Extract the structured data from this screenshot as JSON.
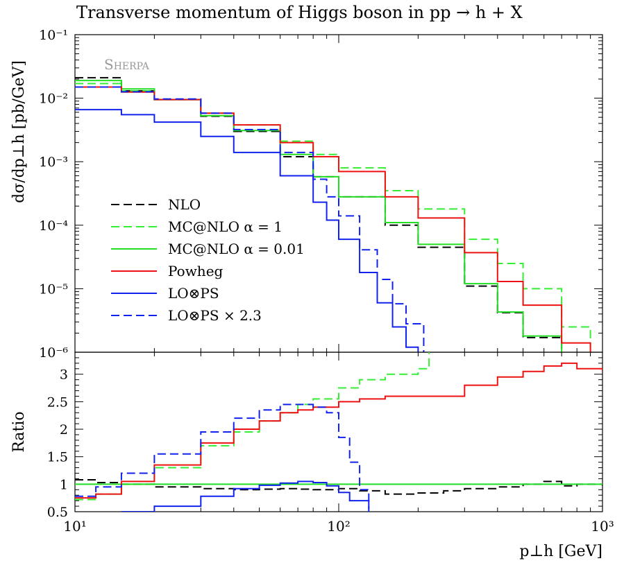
{
  "title": "Transverse momentum of Higgs boson in pp → h + X",
  "watermark": "Sherpa",
  "chart_data": [
    {
      "type": "line",
      "panel": "main",
      "xlabel": "p⊥h [GeV]",
      "ylabel": "dσ/dp⊥h [pb/GeV]",
      "xscale": "log",
      "yscale": "log",
      "xlim": [
        10,
        1000
      ],
      "ylim": [
        1e-06,
        0.1
      ],
      "y_tick_labels": [
        "10⁻¹",
        "10⁻²",
        "10⁻³",
        "10⁻⁴",
        "10⁻⁵",
        "10⁻⁶"
      ],
      "y_tick_values": [
        0.1,
        0.01,
        0.001,
        0.0001,
        1e-05,
        1e-06
      ],
      "legend_position": "lower-left",
      "series": [
        {
          "name": "NLO",
          "color": "#000000",
          "dash": "dashed",
          "x": [
            10,
            15,
            20,
            30,
            40,
            60,
            80,
            100,
            150,
            200,
            300,
            400,
            500,
            700,
            900
          ],
          "y": [
            0.021,
            0.013,
            0.0095,
            0.0052,
            0.003,
            0.0012,
            0.00058,
            0.00028,
            0.0001,
            4.5e-05,
            1.1e-05,
            4.2e-06,
            1.7e-06,
            9e-07,
            6e-07
          ]
        },
        {
          "name": "MC@NLO α = 1",
          "color": "#33ee33",
          "dash": "dashed",
          "x": [
            10,
            15,
            20,
            30,
            40,
            60,
            80,
            100,
            150,
            200,
            300,
            400,
            500,
            700,
            900
          ],
          "y": [
            0.017,
            0.013,
            0.0095,
            0.0058,
            0.0038,
            0.0021,
            0.0013,
            0.0008,
            0.00035,
            0.00018,
            6e-05,
            2.5e-05,
            1e-05,
            2.5e-06,
            1.2e-06
          ]
        },
        {
          "name": "MC@NLO α = 0.01",
          "color": "#22dd22",
          "dash": "solid",
          "x": [
            10,
            15,
            20,
            30,
            40,
            60,
            80,
            100,
            150,
            200,
            300,
            400,
            500,
            700,
            900
          ],
          "y": [
            0.019,
            0.014,
            0.0095,
            0.0053,
            0.0031,
            0.0013,
            0.00058,
            0.00028,
            0.00011,
            5e-05,
            1.2e-05,
            4.3e-06,
            1.8e-06,
            9e-07,
            6e-07
          ]
        },
        {
          "name": "Powheg",
          "color": "#ee1111",
          "dash": "solid",
          "x": [
            10,
            15,
            20,
            30,
            40,
            60,
            80,
            100,
            150,
            200,
            300,
            400,
            500,
            700,
            900
          ],
          "y": [
            0.015,
            0.0125,
            0.0095,
            0.0058,
            0.0038,
            0.002,
            0.0012,
            0.0007,
            0.00028,
            0.00013,
            3.7e-05,
            1.3e-05,
            5.5e-06,
            1.4e-06,
            6e-07
          ]
        },
        {
          "name": "LO⊗PS",
          "color": "#1122ee",
          "dash": "solid",
          "x": [
            10,
            15,
            20,
            30,
            40,
            60,
            80,
            90,
            100,
            120,
            140,
            160,
            180,
            200
          ],
          "y": [
            0.0066,
            0.0055,
            0.0042,
            0.0025,
            0.0014,
            0.0006,
            0.00023,
            0.00012,
            6e-05,
            1.8e-05,
            6e-06,
            2.5e-06,
            1.2e-06,
            1e-06
          ]
        },
        {
          "name": "LO⊗PS × 2.3",
          "color": "#1122ee",
          "dash": "dashed",
          "x": [
            10,
            15,
            20,
            30,
            40,
            60,
            80,
            90,
            100,
            120,
            140,
            160,
            180,
            210
          ],
          "y": [
            0.015,
            0.0126,
            0.0097,
            0.0058,
            0.0032,
            0.0014,
            0.00053,
            0.00028,
            0.00014,
            4.1e-05,
            1.4e-05,
            5.8e-06,
            2.8e-06,
            1e-06
          ]
        }
      ]
    },
    {
      "type": "line",
      "panel": "ratio",
      "xlabel": "p⊥h [GeV]",
      "ylabel": "Ratio",
      "xscale": "log",
      "xlim": [
        10,
        1000
      ],
      "ylim": [
        0.5,
        3.4
      ],
      "x_tick_labels": [
        "10¹",
        "10²",
        "10³"
      ],
      "x_tick_values": [
        10,
        100,
        1000
      ],
      "y_tick_labels": [
        "0.5",
        "1",
        "1.5",
        "2",
        "2.5",
        "3"
      ],
      "y_tick_values": [
        0.5,
        1,
        1.5,
        2,
        2.5,
        3
      ],
      "series": [
        {
          "name": "NLO",
          "color": "#000000",
          "dash": "dashed",
          "x": [
            10,
            12,
            15,
            20,
            30,
            40,
            50,
            60,
            70,
            80,
            100,
            120,
            150,
            200,
            250,
            300,
            400,
            500,
            600,
            700,
            800,
            1000
          ],
          "y": [
            1.08,
            1.03,
            1.0,
            0.95,
            0.92,
            0.9,
            0.91,
            0.92,
            0.91,
            0.9,
            0.92,
            0.88,
            0.82,
            0.84,
            0.88,
            0.92,
            0.95,
            1.0,
            1.05,
            0.97,
            1.0,
            0.97
          ]
        },
        {
          "name": "MC@NLO α = 1",
          "color": "#33ee33",
          "dash": "dashed",
          "x": [
            10,
            12,
            15,
            20,
            30,
            40,
            50,
            60,
            70,
            80,
            100,
            120,
            150,
            200,
            220
          ],
          "y": [
            0.72,
            0.82,
            1.0,
            1.3,
            1.7,
            1.95,
            2.15,
            2.3,
            2.45,
            2.55,
            2.75,
            2.9,
            3.0,
            3.1,
            3.4
          ]
        },
        {
          "name": "MC@NLO α = 0.01",
          "color": "#22dd22",
          "dash": "solid",
          "x": [
            10,
            1000
          ],
          "y": [
            1.0,
            1.0
          ]
        },
        {
          "name": "Powheg",
          "color": "#ee1111",
          "dash": "solid",
          "x": [
            10,
            12,
            15,
            20,
            30,
            40,
            50,
            60,
            70,
            80,
            100,
            120,
            150,
            200,
            300,
            400,
            500,
            600,
            700,
            800,
            1000
          ],
          "y": [
            0.75,
            0.82,
            1.05,
            1.35,
            1.75,
            2.0,
            2.15,
            2.3,
            2.35,
            2.4,
            2.5,
            2.55,
            2.6,
            2.6,
            2.8,
            2.95,
            3.05,
            3.15,
            3.2,
            3.1,
            3.05
          ]
        },
        {
          "name": "LO⊗PS",
          "color": "#1122ee",
          "dash": "solid",
          "x": [
            15,
            20,
            30,
            40,
            50,
            60,
            70,
            80,
            90,
            100,
            110,
            130
          ],
          "y": [
            0.5,
            0.6,
            0.78,
            0.92,
            0.98,
            1.02,
            1.05,
            1.03,
            0.97,
            0.85,
            0.7,
            0.5
          ]
        },
        {
          "name": "LO⊗PS × 2.3",
          "color": "#1122ee",
          "dash": "dashed",
          "x": [
            10,
            12,
            15,
            20,
            30,
            40,
            50,
            60,
            70,
            80,
            90,
            100,
            110,
            120,
            130
          ],
          "y": [
            0.78,
            0.95,
            1.2,
            1.55,
            1.95,
            2.2,
            2.35,
            2.45,
            2.45,
            2.4,
            2.3,
            1.85,
            1.4,
            0.9,
            0.55
          ]
        }
      ]
    }
  ]
}
